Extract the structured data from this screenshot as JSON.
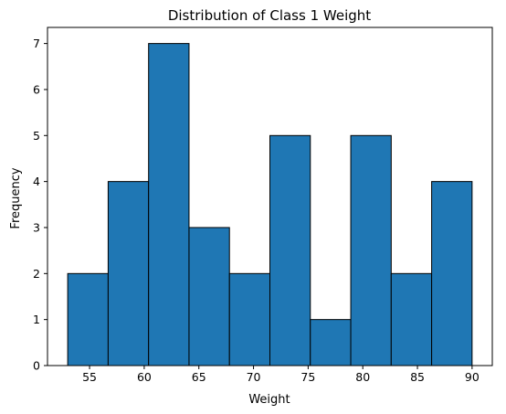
{
  "chart_data": {
    "type": "histogram",
    "title": "Distribution of Class 1 Weight",
    "xlabel": "Weight",
    "ylabel": "Frequency",
    "bin_edges": [
      53.0,
      56.7,
      60.4,
      64.1,
      67.8,
      71.5,
      75.2,
      78.9,
      82.6,
      86.3,
      90.0
    ],
    "values": [
      2,
      4,
      7,
      3,
      2,
      5,
      1,
      5,
      2,
      4
    ],
    "xlim": [
      51.15,
      91.85
    ],
    "ylim": [
      0,
      7.35
    ],
    "xticks": [
      55,
      60,
      65,
      70,
      75,
      80,
      85,
      90
    ],
    "yticks": [
      0,
      1,
      2,
      3,
      4,
      5,
      6,
      7
    ],
    "bar_color": "#1f77b4",
    "edge_color": "#000000",
    "grid": false,
    "legend": false
  }
}
